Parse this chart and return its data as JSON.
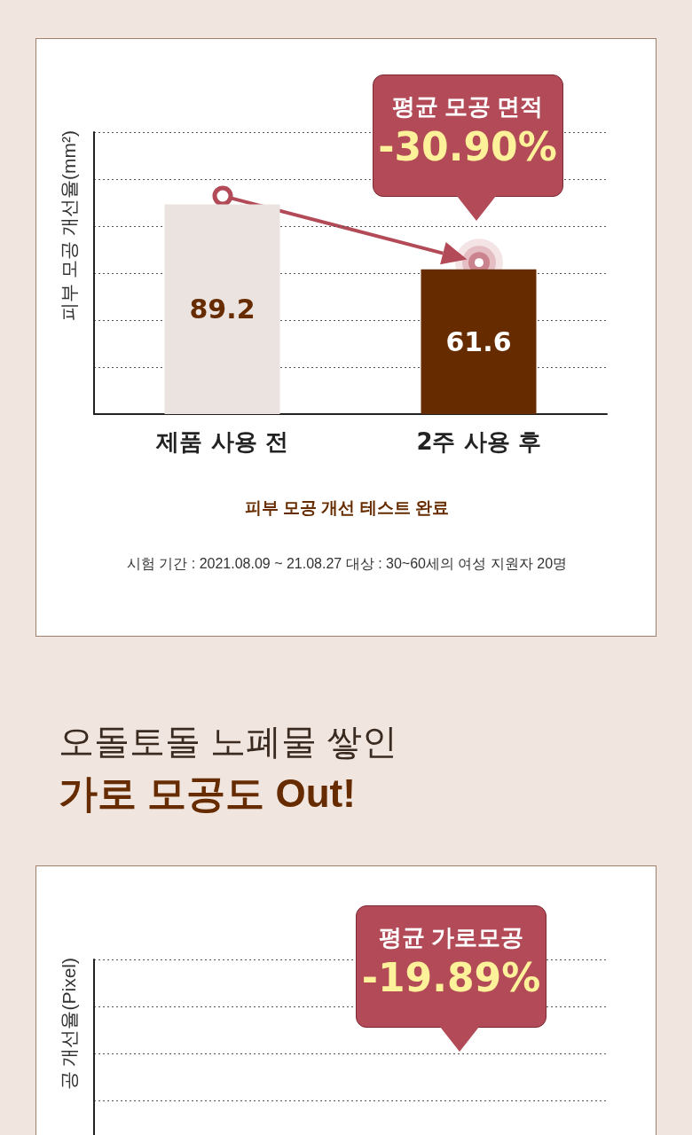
{
  "chart_data": [
    {
      "type": "bar",
      "ylabel": "피부 모공 개선율(mm²)",
      "categories": [
        "제품 사용 전",
        "2주 사용 후"
      ],
      "values": [
        89.2,
        61.6
      ],
      "colors": [
        "#ebe3df",
        "#662c00"
      ],
      "ylim": [
        0,
        120
      ],
      "yticks": [
        {
          "value": 0,
          "label": null
        },
        {
          "value": 20,
          "label": null
        },
        {
          "value": 40,
          "label": null
        },
        {
          "value": 60,
          "label": null
        },
        {
          "value": 80,
          "label": null
        },
        {
          "value": 100,
          "label": null
        },
        {
          "value": 120,
          "label": null
        }
      ],
      "tick_labels": "x",
      "grid": "y",
      "data_labels": true,
      "annotations": [
        "평균 모공 면적",
        "-30.90%",
        "피부 모공 개선 테스트 완료",
        "시험 기간 : 2021.08.09 ~ 21.08.27    대상 : 30~60세의 여성 지원자 20명"
      ]
    },
    {
      "type": "other",
      "title": "오돌토돌 노폐물 쌓인",
      "subtitle": "가로 모공도 Out!",
      "ylabel": "공 개선율(Pixel)",
      "annotations": [
        "평균 가로모공",
        "-19.89%"
      ]
    }
  ]
}
